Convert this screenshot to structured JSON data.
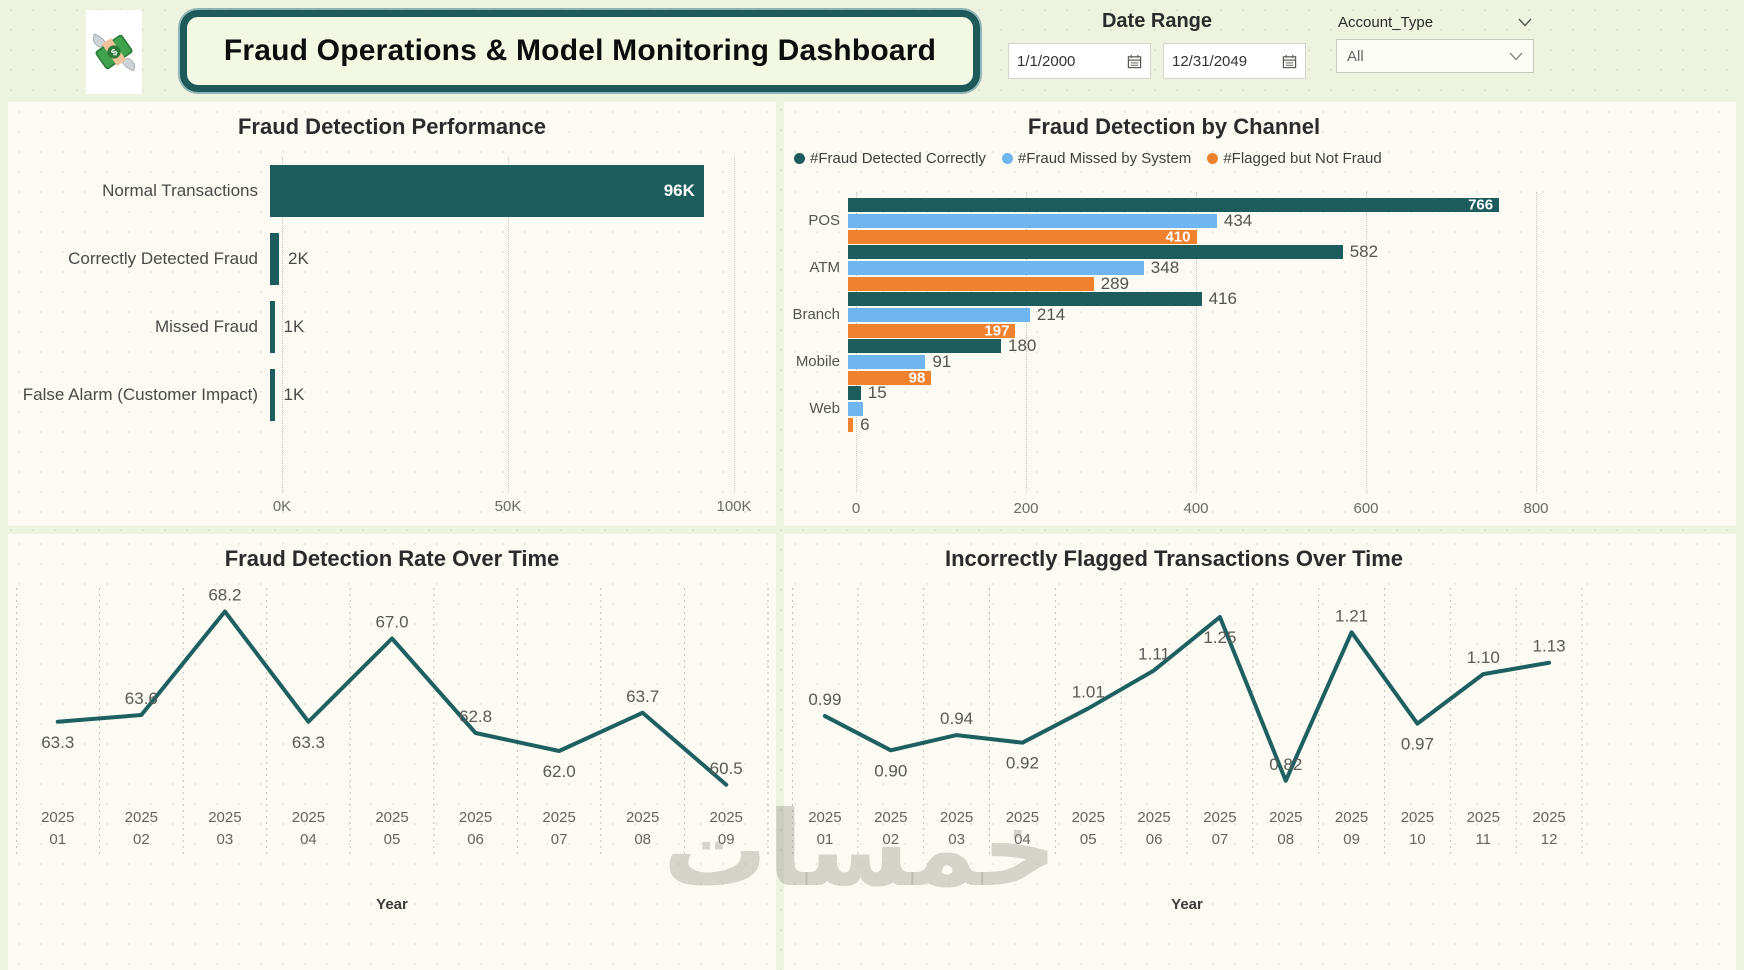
{
  "header": {
    "title": "Fraud Operations & Model Monitoring Dashboard",
    "date_range": {
      "label": "Date Range",
      "start_value": "1/1/2000",
      "end_value": "12/31/2049"
    },
    "account_type": {
      "label": "Account_Type",
      "value": "All"
    }
  },
  "colors": {
    "teal": "#1D5C5C",
    "blue": "#6FB5F0",
    "orange": "#F0812F",
    "page_bg": "#EDF3DE",
    "card_bg": "#FBFBF4",
    "separator": "#c2c2ba"
  },
  "watermark": {
    "text": "خمسات"
  },
  "chart_data": [
    {
      "id": "fraud-detection-performance",
      "type": "bar",
      "orientation": "horizontal",
      "title": "Fraud Detection Performance",
      "categories": [
        "Normal Transactions",
        "Correctly Detected Fraud",
        "Missed Fraud",
        "False Alarm (Customer Impact)"
      ],
      "values": [
        96000,
        2000,
        1000,
        1000
      ],
      "value_labels": [
        "96K",
        "2K",
        "1K",
        "1K"
      ],
      "label_inside": [
        true,
        false,
        false,
        false
      ],
      "xlim": [
        0,
        100000
      ],
      "x_ticks": [
        {
          "value": 0,
          "label": "0K"
        },
        {
          "value": 50000,
          "label": "50K"
        },
        {
          "value": 100000,
          "label": "100K"
        }
      ],
      "bar_color": "#1D5C5C",
      "grid": "dotted-vertical"
    },
    {
      "id": "fraud-detection-by-channel",
      "type": "bar",
      "orientation": "horizontal",
      "grouped": true,
      "title": "Fraud Detection by Channel",
      "legend_position": "top-left",
      "categories": [
        "POS",
        "ATM",
        "Branch",
        "Mobile",
        "Web"
      ],
      "series": [
        {
          "name": "#Fraud Detected Correctly",
          "color": "#1D5C5C",
          "values": [
            766,
            582,
            416,
            180,
            15
          ],
          "value_labels": [
            "766",
            "582",
            "416",
            "180",
            "15"
          ],
          "label_inside": [
            true,
            false,
            false,
            false,
            false
          ]
        },
        {
          "name": "#Fraud Missed by System",
          "color": "#6FB5F0",
          "values": [
            434,
            348,
            214,
            91,
            18
          ],
          "value_labels": [
            "434",
            "348",
            "214",
            "91",
            ""
          ],
          "label_inside": [
            false,
            false,
            false,
            false,
            false
          ]
        },
        {
          "name": "#Flagged but Not Fraud",
          "color": "#F0812F",
          "values": [
            410,
            289,
            197,
            98,
            6
          ],
          "value_labels": [
            "410",
            "289",
            "197",
            "98",
            "6"
          ],
          "label_inside": [
            true,
            false,
            true,
            true,
            false
          ]
        }
      ],
      "xlim": [
        0,
        800
      ],
      "x_ticks": [
        {
          "value": 0,
          "label": "0"
        },
        {
          "value": 200,
          "label": "200"
        },
        {
          "value": 400,
          "label": "400"
        },
        {
          "value": 600,
          "label": "600"
        },
        {
          "value": 800,
          "label": "800"
        }
      ],
      "grid": "dotted-vertical"
    },
    {
      "id": "fraud-detection-rate-over-time",
      "type": "line",
      "title": "Fraud Detection Rate Over Time",
      "x_year": "2025",
      "x_months": [
        "01",
        "02",
        "03",
        "04",
        "05",
        "06",
        "07",
        "08",
        "09"
      ],
      "values": [
        63.3,
        63.6,
        68.2,
        63.3,
        67.0,
        62.8,
        62.0,
        63.7,
        60.5
      ],
      "value_labels": [
        "63.3",
        "63.6",
        "68.2",
        "63.3",
        "67.0",
        "62.8",
        "62.0",
        "63.7",
        "60.5"
      ],
      "label_position": [
        "below",
        "above",
        "above",
        "below",
        "above",
        "above",
        "below",
        "above",
        "above"
      ],
      "xlabel": "Year",
      "ylim": [
        60.0,
        68.8
      ],
      "line_color": "#1E6060"
    },
    {
      "id": "incorrectly-flagged-transactions-over-time",
      "type": "line",
      "title": "Incorrectly Flagged Transactions Over Time",
      "x_year": "2025",
      "x_months": [
        "01",
        "02",
        "03",
        "04",
        "05",
        "06",
        "07",
        "08",
        "09",
        "10",
        "11",
        "12"
      ],
      "values": [
        0.99,
        0.9,
        0.94,
        0.92,
        1.01,
        1.11,
        1.25,
        0.82,
        1.21,
        0.97,
        1.1,
        1.13
      ],
      "value_labels": [
        "0.99",
        "0.90",
        "0.94",
        "0.92",
        "1.01",
        "1.11",
        "1.25",
        "0.82",
        "1.21",
        "0.97",
        "1.10",
        "1.13"
      ],
      "label_position": [
        "above",
        "below",
        "above",
        "below",
        "above",
        "above",
        "below",
        "above",
        "above",
        "below",
        "above",
        "above"
      ],
      "xlabel": "Year",
      "ylim": [
        0.78,
        1.3
      ],
      "line_color": "#1E6060"
    }
  ]
}
